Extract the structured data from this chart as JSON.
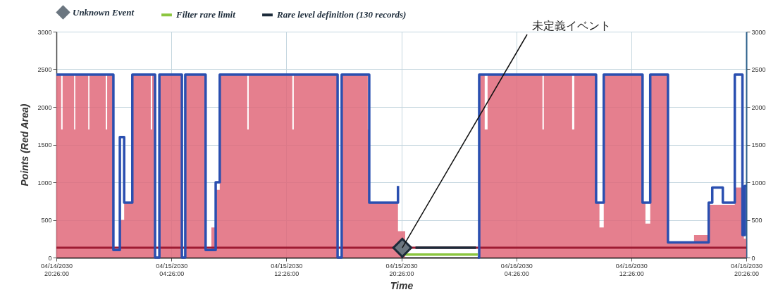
{
  "chart_data": {
    "type": "step",
    "xlabel": "Time",
    "ylabel": "Points (Red Area)",
    "xlim": [
      "2030-04-14T20:26",
      "2030-04-16T20:26"
    ],
    "xticks": [
      {
        "value": "2030-04-14T20:26",
        "label": "04/14/2030\n20:26:00"
      },
      {
        "value": "2030-04-15T04:26",
        "label": "04/15/2030\n04:26:00"
      },
      {
        "value": "2030-04-15T12:26",
        "label": "04/15/2030\n12:26:00"
      },
      {
        "value": "2030-04-15T20:26",
        "label": "04/15/2030\n20:26:00"
      },
      {
        "value": "2030-04-16T04:26",
        "label": "04/16/2030\n04:26:00"
      },
      {
        "value": "2030-04-16T12:26",
        "label": "04/16/2030\n12:26:00"
      },
      {
        "value": "2030-04-16T20:26",
        "label": "04/16/2030\n20:26:00"
      }
    ],
    "ylim": [
      0,
      3000
    ],
    "yticks": [
      0,
      500,
      1000,
      1500,
      2000,
      2500,
      3000
    ],
    "y2lim": [
      0,
      3000
    ],
    "y2ticks": [
      0,
      500,
      1000,
      1500,
      2000,
      2500,
      3000
    ],
    "grid": true,
    "legend": "top left",
    "ref_lines": [
      {
        "axis": "y",
        "value": 130,
        "label": null,
        "color": "#9e1b32"
      }
    ],
    "annotations": [
      {
        "text": "未定義イベント",
        "x": "2030-04-15T20:30",
        "y": 130
      }
    ],
    "series": [
      {
        "type": "area",
        "color": "#e0687a",
        "x": [
          "2030-04-14T20:26",
          "2030-04-14T20:46",
          "2030-04-14T20:52",
          "2030-04-14T21:40",
          "2030-04-14T21:45",
          "2030-04-14T22:39",
          "2030-04-14T22:44",
          "2030-04-14T23:52",
          "2030-04-14T23:58",
          "2030-04-15T00:24",
          "2030-04-15T00:51",
          "2030-04-15T01:09",
          "2030-04-15T01:43",
          "2030-04-15T03:00",
          "2030-04-15T03:06",
          "2030-04-15T03:18",
          "2030-04-15T03:36",
          "2030-04-15T05:10",
          "2030-04-15T05:24",
          "2030-04-15T06:49",
          "2030-04-15T07:13",
          "2030-04-15T07:31",
          "2030-04-15T07:48",
          "2030-04-15T09:43",
          "2030-04-15T09:49",
          "2030-04-15T12:51",
          "2030-04-15T12:57",
          "2030-04-15T16:00",
          "2030-04-15T16:17",
          "2030-04-15T18:06",
          "2030-04-15T18:12",
          "2030-04-15T20:12",
          "2030-04-15T20:42",
          "2030-04-16T01:45",
          "2030-04-16T01:51",
          "2030-04-16T02:14",
          "2030-04-16T02:26",
          "2030-04-16T06:15",
          "2030-04-16T06:21",
          "2030-04-16T08:19",
          "2030-04-16T08:28",
          "2030-04-16T09:59",
          "2030-04-16T10:13",
          "2030-04-16T10:31",
          "2030-04-16T13:13",
          "2030-04-16T13:25",
          "2030-04-16T13:45",
          "2030-04-16T14:59",
          "2030-04-16T16:48",
          "2030-04-16T17:49",
          "2030-04-16T19:38",
          "2030-04-16T20:16",
          "2030-04-16T20:26"
        ],
        "values": [
          2430,
          1700,
          2430,
          1700,
          2430,
          1700,
          2430,
          1700,
          2430,
          100,
          500,
          730,
          2430,
          1700,
          2430,
          0,
          2430,
          0,
          2430,
          100,
          400,
          900,
          2430,
          1700,
          2430,
          1700,
          2430,
          0,
          2430,
          1700,
          730,
          350,
          0,
          0,
          2430,
          1700,
          2430,
          1700,
          2430,
          1700,
          2430,
          730,
          400,
          2430,
          730,
          450,
          2430,
          200,
          300,
          700,
          930,
          250,
          930
        ]
      },
      {
        "name": "Unknown Event",
        "type": "scatter",
        "marker": "diamond",
        "color": "#6b7680",
        "x": [
          "2030-04-15T20:30"
        ],
        "values": [
          130
        ]
      },
      {
        "color": "#2a4fb0",
        "x": [
          "2030-04-14T20:26",
          "2030-04-15T00:24",
          "2030-04-15T00:51",
          "2030-04-15T01:09",
          "2030-04-15T01:43",
          "2030-04-15T03:18",
          "2030-04-15T03:36",
          "2030-04-15T05:10",
          "2030-04-15T05:24",
          "2030-04-15T06:49",
          "2030-04-15T07:31",
          "2030-04-15T07:48",
          "2030-04-15T16:00",
          "2030-04-15T16:17",
          "2030-04-15T18:12",
          "2030-04-15T20:12",
          "2030-04-15T20:42",
          "2030-04-16T01:45",
          "2030-04-16T01:51",
          "2030-04-16T09:59",
          "2030-04-16T10:31",
          "2030-04-16T13:13",
          "2030-04-16T13:45",
          "2030-04-16T14:59",
          "2030-04-16T17:49",
          "2030-04-16T18:04",
          "2030-04-16T18:48",
          "2030-04-16T19:38",
          "2030-04-16T20:10",
          "2030-04-16T20:20",
          "2030-04-16T20:26"
        ],
        "values": [
          2430,
          100,
          1600,
          730,
          2430,
          0,
          2430,
          0,
          2430,
          100,
          1000,
          2430,
          0,
          2430,
          730,
          950,
          null,
          0,
          2430,
          730,
          2430,
          730,
          2430,
          200,
          730,
          930,
          730,
          2430,
          300,
          950,
          950
        ]
      },
      {
        "name": "Filter rare limit",
        "color": "#8cc63f",
        "x": [
          "2030-04-15T20:42",
          "2030-04-16T01:45"
        ],
        "values": [
          40,
          40
        ]
      },
      {
        "name": "Rare level definition (130 records)",
        "color": "#1c2b3a",
        "x": [
          "2030-04-15T21:25",
          "2030-04-16T01:38"
        ],
        "values": [
          130,
          130
        ]
      }
    ]
  }
}
